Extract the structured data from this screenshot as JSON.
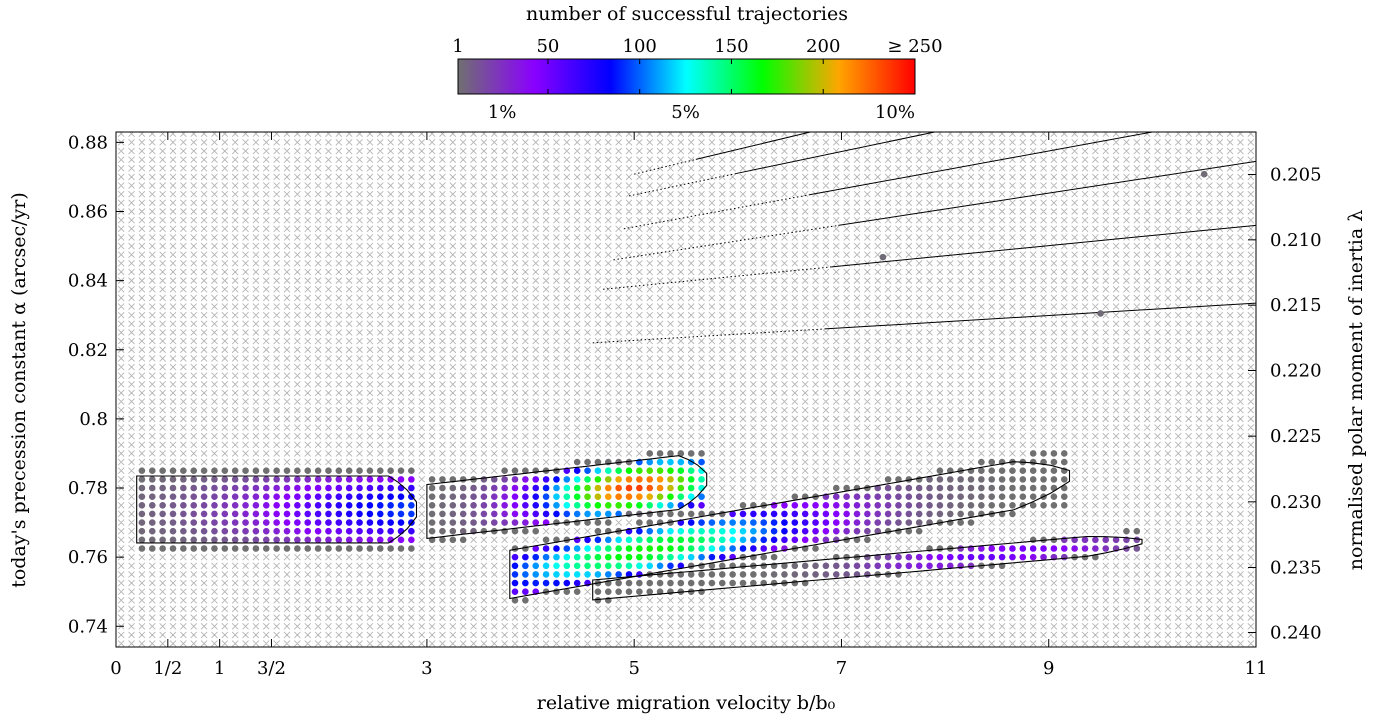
{
  "chart_data": {
    "type": "scatter",
    "title": "",
    "xlabel": "relative migration velocity b/b₀",
    "ylabel": "today's precession constant α (arcsec/yr)",
    "y2label": "normalised polar moment of inertia λ",
    "xlim": [
      0,
      11
    ],
    "ylim": [
      0.734,
      0.883
    ],
    "x_ticks": [
      {
        "value": 0,
        "label": "0"
      },
      {
        "value": 0.5,
        "label": "1/2"
      },
      {
        "value": 1,
        "label": "1"
      },
      {
        "value": 1.5,
        "label": "3/2"
      },
      {
        "value": 3,
        "label": "3"
      },
      {
        "value": 5,
        "label": "5"
      },
      {
        "value": 7,
        "label": "7"
      },
      {
        "value": 9,
        "label": "9"
      },
      {
        "value": 11,
        "label": "11"
      }
    ],
    "y_ticks": [
      {
        "value": 0.74,
        "label": "0.74"
      },
      {
        "value": 0.76,
        "label": "0.76"
      },
      {
        "value": 0.78,
        "label": "0.78"
      },
      {
        "value": 0.8,
        "label": "0.8"
      },
      {
        "value": 0.82,
        "label": "0.82"
      },
      {
        "value": 0.84,
        "label": "0.84"
      },
      {
        "value": 0.86,
        "label": "0.86"
      },
      {
        "value": 0.88,
        "label": "0.88"
      }
    ],
    "y2_ticks": [
      {
        "value": 0.8707,
        "label": "0.205"
      },
      {
        "value": 0.8518,
        "label": "0.210"
      },
      {
        "value": 0.8329,
        "label": "0.215"
      },
      {
        "value": 0.814,
        "label": "0.220"
      },
      {
        "value": 0.795,
        "label": "0.225"
      },
      {
        "value": 0.776,
        "label": "0.230"
      },
      {
        "value": 0.757,
        "label": "0.235"
      },
      {
        "value": 0.7382,
        "label": "0.240"
      }
    ],
    "colorbar": {
      "title": "number of successful trajectories",
      "min": 1,
      "max": 250,
      "tick_labels": [
        {
          "value": 1,
          "label": "1"
        },
        {
          "value": 50,
          "label": "50"
        },
        {
          "value": 100,
          "label": "100"
        },
        {
          "value": 150,
          "label": "150"
        },
        {
          "value": 200,
          "label": "200"
        },
        {
          "value": 250,
          "label": "≥ 250"
        }
      ],
      "percent_labels": [
        {
          "value": 25,
          "label": "1%"
        },
        {
          "value": 125,
          "label": "5%"
        },
        {
          "value": 250,
          "label": "10%"
        }
      ],
      "colors": [
        "#707070",
        "#8a00ff",
        "#0000ff",
        "#00ffff",
        "#00ff00",
        "#ffa500",
        "#ff0000"
      ]
    },
    "grid_step": {
      "x": 0.1,
      "y": 0.0025
    },
    "background_marker": "cross (no success)",
    "regions": [
      {
        "x_range": [
          0.2,
          2.9
        ],
        "y_center": 0.7738,
        "half_height": 0.0118,
        "peak": 95,
        "peak_x": 3.0,
        "spread_x": 1.6
      },
      {
        "x_range": [
          3.0,
          5.7
        ],
        "y_start": 0.7732,
        "y_end": 0.7825,
        "half_height": 0.0095,
        "peak": 235,
        "peak_x": 5.0,
        "spread_x": 0.9
      },
      {
        "x_range": [
          3.8,
          9.2
        ],
        "y_start": 0.755,
        "y_end": 0.7835,
        "half_height": 0.0085,
        "peak": 170,
        "peak_x": 5.1,
        "spread_x": 1.6
      },
      {
        "x_range": [
          4.6,
          9.9
        ],
        "y_start": 0.7505,
        "y_end": 0.7645,
        "half_height": 0.0035,
        "peak": 55,
        "peak_x": 8.5,
        "spread_x": 1.2
      }
    ],
    "isolated_points": [
      {
        "x": 7.4,
        "y": 0.8468,
        "value": 3
      },
      {
        "x": 9.5,
        "y": 0.8305,
        "value": 3
      },
      {
        "x": 10.5,
        "y": 0.8708,
        "value": 3
      }
    ]
  }
}
